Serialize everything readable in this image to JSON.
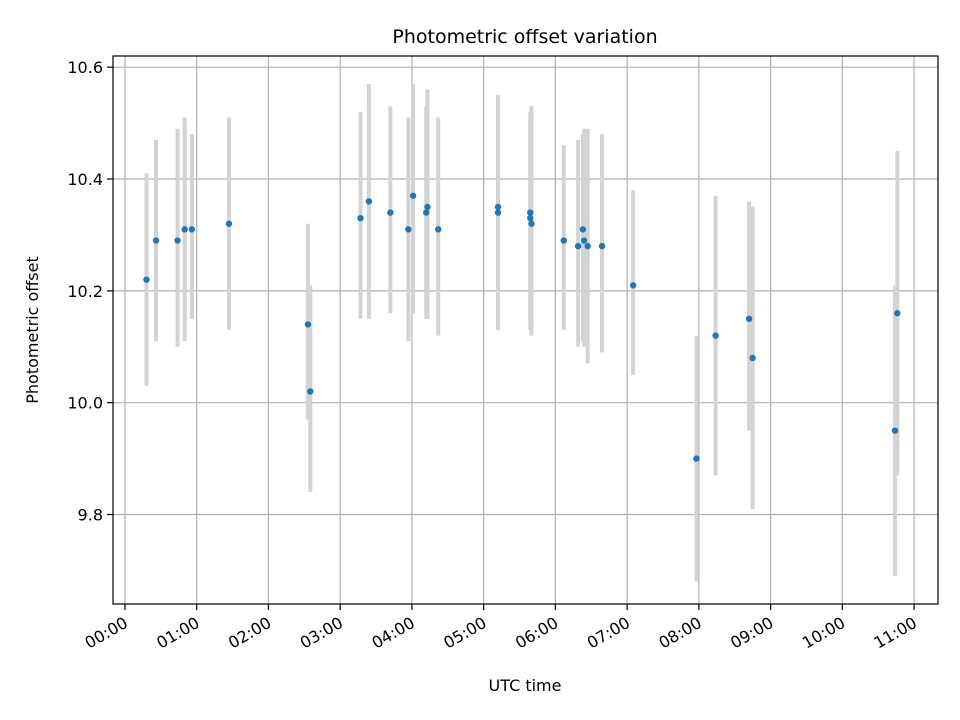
{
  "chart_data": {
    "type": "scatter",
    "title": "Photometric offset variation",
    "xlabel": "UTC time",
    "ylabel": "Photometric offset",
    "x_unit": "UTC time (HH:MM)",
    "xlim": [
      "23:50",
      "11:20"
    ],
    "ylim": [
      9.64,
      10.62
    ],
    "x_ticks": [
      "00:00",
      "01:00",
      "02:00",
      "03:00",
      "04:00",
      "05:00",
      "06:00",
      "07:00",
      "08:00",
      "09:00",
      "10:00",
      "11:00"
    ],
    "y_ticks": [
      9.8,
      10.0,
      10.2,
      10.4,
      10.6
    ],
    "y_tick_labels": [
      "9.8",
      "10.0",
      "10.2",
      "10.4",
      "10.6"
    ],
    "grid": true,
    "marker_color": "#1f77b4",
    "errorbar_color": "#d3d3d3",
    "points": [
      {
        "x": "00:18",
        "y": 10.22,
        "lo": 10.03,
        "hi": 10.41
      },
      {
        "x": "00:26",
        "y": 10.29,
        "lo": 10.11,
        "hi": 10.47
      },
      {
        "x": "00:44",
        "y": 10.29,
        "lo": 10.1,
        "hi": 10.49
      },
      {
        "x": "00:50",
        "y": 10.31,
        "lo": 10.11,
        "hi": 10.51
      },
      {
        "x": "00:56",
        "y": 10.31,
        "lo": 10.15,
        "hi": 10.48
      },
      {
        "x": "01:27",
        "y": 10.32,
        "lo": 10.13,
        "hi": 10.51
      },
      {
        "x": "02:33",
        "y": 10.14,
        "lo": 9.97,
        "hi": 10.32
      },
      {
        "x": "02:35",
        "y": 10.02,
        "lo": 9.84,
        "hi": 10.21
      },
      {
        "x": "03:17",
        "y": 10.33,
        "lo": 10.15,
        "hi": 10.52
      },
      {
        "x": "03:24",
        "y": 10.36,
        "lo": 10.15,
        "hi": 10.57
      },
      {
        "x": "03:42",
        "y": 10.34,
        "lo": 10.16,
        "hi": 10.53
      },
      {
        "x": "03:57",
        "y": 10.31,
        "lo": 10.11,
        "hi": 10.51
      },
      {
        "x": "04:01",
        "y": 10.37,
        "lo": 10.16,
        "hi": 10.57
      },
      {
        "x": "04:12",
        "y": 10.34,
        "lo": 10.15,
        "hi": 10.53
      },
      {
        "x": "04:13",
        "y": 10.35,
        "lo": 10.15,
        "hi": 10.56
      },
      {
        "x": "04:22",
        "y": 10.31,
        "lo": 10.12,
        "hi": 10.51
      },
      {
        "x": "05:12",
        "y": 10.35,
        "lo": 10.13,
        "hi": 10.55
      },
      {
        "x": "05:12",
        "y": 10.34,
        "lo": 10.13,
        "hi": 10.55
      },
      {
        "x": "05:39",
        "y": 10.34,
        "lo": 10.15,
        "hi": 10.5
      },
      {
        "x": "05:39",
        "y": 10.33,
        "lo": 10.13,
        "hi": 10.52
      },
      {
        "x": "05:40",
        "y": 10.32,
        "lo": 10.12,
        "hi": 10.53
      },
      {
        "x": "06:07",
        "y": 10.29,
        "lo": 10.13,
        "hi": 10.46
      },
      {
        "x": "06:19",
        "y": 10.28,
        "lo": 10.1,
        "hi": 10.47
      },
      {
        "x": "06:23",
        "y": 10.31,
        "lo": 10.11,
        "hi": 10.48
      },
      {
        "x": "06:24",
        "y": 10.29,
        "lo": 10.1,
        "hi": 10.49
      },
      {
        "x": "06:27",
        "y": 10.28,
        "lo": 10.07,
        "hi": 10.49
      },
      {
        "x": "06:39",
        "y": 10.28,
        "lo": 10.09,
        "hi": 10.48
      },
      {
        "x": "07:05",
        "y": 10.21,
        "lo": 10.05,
        "hi": 10.38
      },
      {
        "x": "07:58",
        "y": 9.9,
        "lo": 9.68,
        "hi": 10.12
      },
      {
        "x": "08:14",
        "y": 10.12,
        "lo": 9.87,
        "hi": 10.37
      },
      {
        "x": "08:42",
        "y": 10.15,
        "lo": 9.95,
        "hi": 10.36
      },
      {
        "x": "08:45",
        "y": 10.08,
        "lo": 9.81,
        "hi": 10.35
      },
      {
        "x": "10:44",
        "y": 9.95,
        "lo": 9.69,
        "hi": 10.21
      },
      {
        "x": "10:46",
        "y": 10.16,
        "lo": 9.87,
        "hi": 10.45
      }
    ]
  }
}
